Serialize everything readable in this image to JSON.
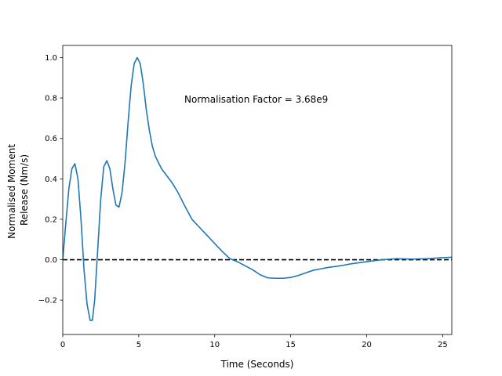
{
  "chart_data": {
    "type": "line",
    "title": "",
    "xlabel": "Time (Seconds)",
    "ylabel_lines": [
      "Normalised Moment",
      "Release (Nm/s)"
    ],
    "xlim": [
      0,
      25.6
    ],
    "ylim": [
      -0.37,
      1.06
    ],
    "x_ticks": [
      0,
      5,
      10,
      15,
      20,
      25
    ],
    "y_ticks": [
      -0.2,
      0.0,
      0.2,
      0.4,
      0.6,
      0.8,
      1.0
    ],
    "x_tick_labels": [
      "0",
      "5",
      "10",
      "15",
      "20",
      "25"
    ],
    "y_tick_labels": [
      "−0.2",
      "0.0",
      "0.2",
      "0.4",
      "0.6",
      "0.8",
      "1.0"
    ],
    "grid": false,
    "annotation": {
      "text": "Normalisation Factor = 3.68e9",
      "x": 8.0,
      "y": 0.8
    },
    "reference_line": {
      "y": 0.0,
      "style": "dashed",
      "color": "#000000"
    },
    "series": [
      {
        "color": "#1f77b4",
        "x": [
          0,
          0.2,
          0.4,
          0.6,
          0.8,
          1.0,
          1.2,
          1.4,
          1.6,
          1.8,
          1.95,
          2.1,
          2.3,
          2.5,
          2.7,
          2.9,
          3.1,
          3.3,
          3.5,
          3.7,
          3.9,
          4.1,
          4.3,
          4.5,
          4.7,
          4.9,
          5.1,
          5.3,
          5.5,
          5.7,
          5.9,
          6.1,
          6.3,
          6.5,
          6.8,
          7.2,
          7.6,
          8.0,
          8.5,
          9.0,
          9.5,
          10.0,
          10.5,
          11.0,
          11.5,
          12.0,
          12.5,
          13.0,
          13.5,
          14.0,
          14.5,
          15.0,
          15.5,
          16.0,
          16.5,
          17.0,
          17.5,
          18.0,
          18.5,
          19.0,
          20.0,
          21.0,
          22.0,
          23.0,
          24.0,
          25.0,
          25.6
        ],
        "y": [
          0.0,
          0.18,
          0.35,
          0.45,
          0.475,
          0.4,
          0.2,
          -0.05,
          -0.22,
          -0.3,
          -0.3,
          -0.2,
          0.05,
          0.3,
          0.46,
          0.49,
          0.45,
          0.35,
          0.27,
          0.26,
          0.33,
          0.48,
          0.68,
          0.86,
          0.97,
          1.0,
          0.97,
          0.87,
          0.74,
          0.64,
          0.56,
          0.51,
          0.48,
          0.45,
          0.42,
          0.38,
          0.33,
          0.27,
          0.2,
          0.16,
          0.12,
          0.08,
          0.04,
          0.005,
          -0.01,
          -0.03,
          -0.05,
          -0.075,
          -0.09,
          -0.092,
          -0.092,
          -0.088,
          -0.078,
          -0.065,
          -0.052,
          -0.045,
          -0.038,
          -0.033,
          -0.027,
          -0.02,
          -0.01,
          0.0,
          0.005,
          0.003,
          0.005,
          0.01,
          0.012
        ]
      }
    ]
  }
}
